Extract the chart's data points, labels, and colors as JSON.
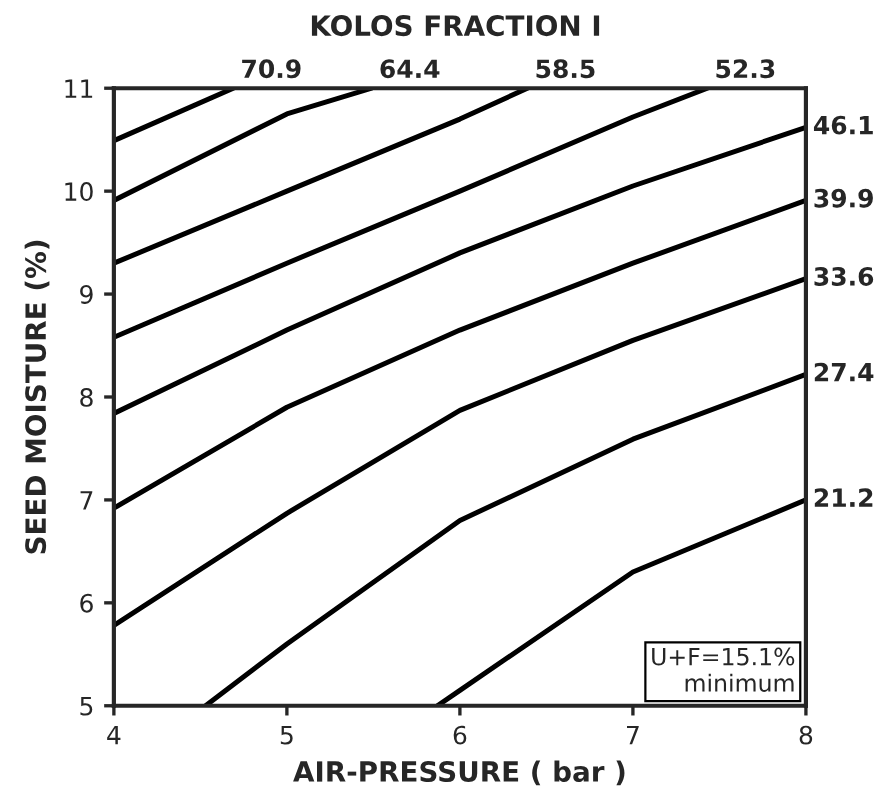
{
  "chart_data": {
    "type": "line",
    "xlabel": "AIR-PRESSURE ( bar )",
    "ylabel": "SEED MOISTURE (%)",
    "xlim": [
      4,
      8
    ],
    "ylim": [
      5,
      11
    ],
    "xticks": [
      4,
      5,
      6,
      7,
      8
    ],
    "yticks": [
      5,
      6,
      7,
      8,
      9,
      10,
      11
    ],
    "grid": false,
    "legend": false,
    "marker": "none",
    "line_style": "solid",
    "series": [
      {
        "name": "70.9",
        "color": "#000000",
        "x": [
          4,
          4.69
        ],
        "values": [
          10.49,
          11
        ]
      },
      {
        "name": "64.4",
        "color": "#000000",
        "x": [
          4,
          5,
          5.49
        ],
        "values": [
          9.91,
          10.75,
          11
        ]
      },
      {
        "name": "58.5",
        "color": "#000000",
        "x": [
          4,
          5,
          6,
          6.39
        ],
        "values": [
          9.3,
          10.0,
          10.7,
          11
        ]
      },
      {
        "name": "52.3",
        "color": "#000000",
        "x": [
          4,
          5,
          6,
          7,
          7.43
        ],
        "values": [
          8.58,
          9.3,
          10.0,
          10.72,
          11
        ]
      },
      {
        "name": "46.1",
        "color": "#000000",
        "x": [
          4,
          5,
          6,
          7,
          8
        ],
        "values": [
          7.84,
          8.65,
          9.4,
          10.05,
          10.62
        ]
      },
      {
        "name": "39.9",
        "color": "#000000",
        "x": [
          4,
          5,
          6,
          7,
          8
        ],
        "values": [
          6.92,
          7.9,
          8.65,
          9.3,
          9.91
        ]
      },
      {
        "name": "33.6",
        "color": "#000000",
        "x": [
          4,
          5,
          6,
          7,
          8
        ],
        "values": [
          5.78,
          6.87,
          7.87,
          8.55,
          9.15
        ]
      },
      {
        "name": "27.4",
        "color": "#000000",
        "x": [
          4.53,
          5,
          6,
          7,
          8
        ],
        "values": [
          5,
          5.6,
          6.8,
          7.59,
          8.22
        ]
      },
      {
        "name": "21.2",
        "color": "#000000",
        "x": [
          5.87,
          6,
          7,
          8
        ],
        "values": [
          5,
          5.15,
          6.3,
          7.0
        ]
      }
    ],
    "annotations": [
      "KOLOS FRACTION I",
      "U+F=15.1%\nminimum"
    ]
  }
}
